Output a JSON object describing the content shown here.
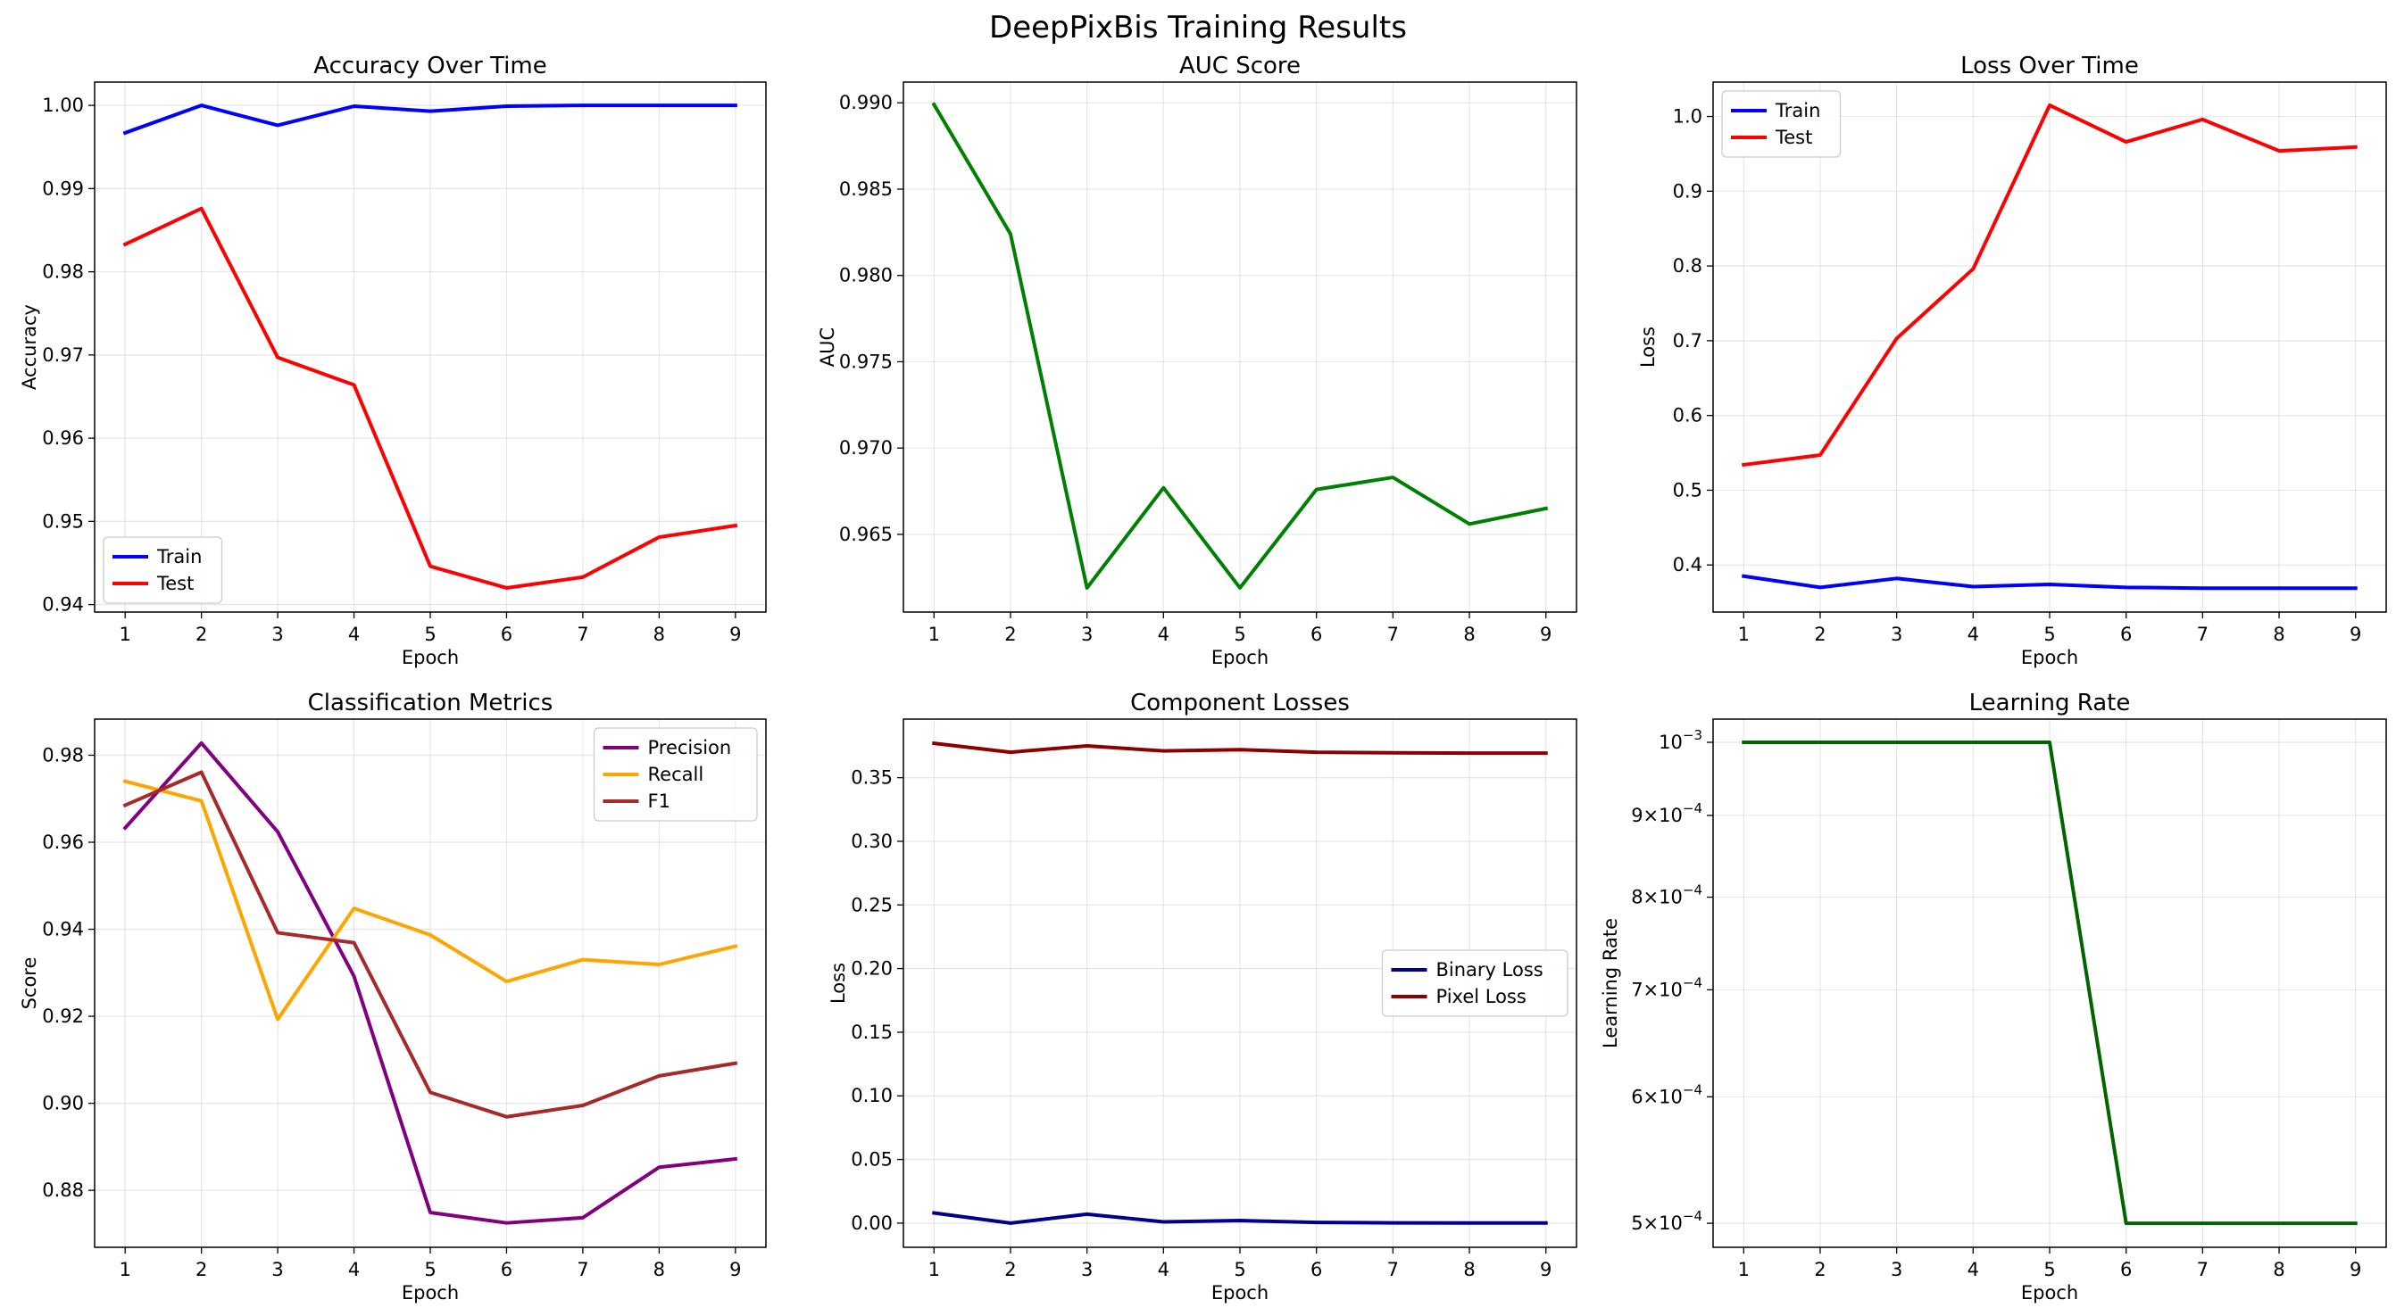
{
  "figure": {
    "title": "DeepPixBis Training Results"
  },
  "chart_data": [
    {
      "id": "accuracy",
      "type": "line",
      "title": "Accuracy Over Time",
      "xlabel": "Epoch",
      "ylabel": "Accuracy",
      "x": [
        1,
        2,
        3,
        4,
        5,
        6,
        7,
        8,
        9
      ],
      "xlim": [
        0.6,
        9.4
      ],
      "ylim": [
        0.9391,
        1.0028
      ],
      "yscale": "linear",
      "yticks": [
        0.94,
        0.95,
        0.96,
        0.97,
        0.98,
        0.99,
        1.0
      ],
      "ytick_labels": [
        "0.94",
        "0.95",
        "0.96",
        "0.97",
        "0.98",
        "0.99",
        "1.00"
      ],
      "grid": true,
      "legend": "lower-left",
      "series": [
        {
          "name": "Train",
          "color": "#0000ff",
          "values": [
            0.9967,
            1.0,
            0.9976,
            0.9999,
            0.9993,
            0.9999,
            1.0,
            1.0,
            1.0
          ]
        },
        {
          "name": "Test",
          "color": "#ff0000",
          "values": [
            0.9833,
            0.9876,
            0.9697,
            0.9664,
            0.9446,
            0.942,
            0.9433,
            0.9481,
            0.9495
          ]
        }
      ]
    },
    {
      "id": "auc",
      "type": "line",
      "title": "AUC Score",
      "xlabel": "Epoch",
      "ylabel": "AUC",
      "x": [
        1,
        2,
        3,
        4,
        5,
        6,
        7,
        8,
        9
      ],
      "xlim": [
        0.6,
        9.4
      ],
      "ylim": [
        0.9605,
        0.9912
      ],
      "yscale": "linear",
      "yticks": [
        0.965,
        0.97,
        0.975,
        0.98,
        0.985,
        0.99
      ],
      "ytick_labels": [
        "0.965",
        "0.970",
        "0.975",
        "0.980",
        "0.985",
        "0.990"
      ],
      "grid": true,
      "legend": "none",
      "series": [
        {
          "name": "",
          "color": "#008000",
          "values": [
            0.9899,
            0.9824,
            0.9619,
            0.9677,
            0.9619,
            0.9676,
            0.9683,
            0.9656,
            0.9665
          ]
        }
      ]
    },
    {
      "id": "loss",
      "type": "line",
      "title": "Loss Over Time",
      "xlabel": "Epoch",
      "ylabel": "Loss",
      "x": [
        1,
        2,
        3,
        4,
        5,
        6,
        7,
        8,
        9
      ],
      "xlim": [
        0.6,
        9.4
      ],
      "ylim": [
        0.337,
        1.046
      ],
      "yscale": "linear",
      "yticks": [
        0.4,
        0.5,
        0.6,
        0.7,
        0.8,
        0.9,
        1.0
      ],
      "ytick_labels": [
        "0.4",
        "0.5",
        "0.6",
        "0.7",
        "0.8",
        "0.9",
        "1.0"
      ],
      "grid": true,
      "legend": "upper-left",
      "series": [
        {
          "name": "Train",
          "color": "#0000ff",
          "values": [
            0.385,
            0.37,
            0.382,
            0.371,
            0.374,
            0.37,
            0.369,
            0.369,
            0.369
          ]
        },
        {
          "name": "Test",
          "color": "#ff0000",
          "values": [
            0.534,
            0.547,
            0.703,
            0.796,
            1.015,
            0.966,
            0.996,
            0.954,
            0.959
          ]
        }
      ]
    },
    {
      "id": "classification",
      "type": "line",
      "title": "Classification Metrics",
      "xlabel": "Epoch",
      "ylabel": "Score",
      "x": [
        1,
        2,
        3,
        4,
        5,
        6,
        7,
        8,
        9
      ],
      "xlim": [
        0.6,
        9.4
      ],
      "ylim": [
        0.8669,
        0.9883
      ],
      "yscale": "linear",
      "yticks": [
        0.88,
        0.9,
        0.92,
        0.94,
        0.96,
        0.98
      ],
      "ytick_labels": [
        "0.88",
        "0.90",
        "0.92",
        "0.94",
        "0.96",
        "0.98"
      ],
      "grid": true,
      "legend": "upper-right",
      "series": [
        {
          "name": "Precision",
          "color": "#800080",
          "values": [
            0.9633,
            0.9828,
            0.9624,
            0.9292,
            0.8749,
            0.8725,
            0.8737,
            0.8853,
            0.8872
          ]
        },
        {
          "name": "Recall",
          "color": "#ffa500",
          "values": [
            0.974,
            0.9695,
            0.9193,
            0.9448,
            0.9387,
            0.928,
            0.933,
            0.9319,
            0.9361
          ]
        },
        {
          "name": "F1",
          "color": "#a52a2a",
          "values": [
            0.9685,
            0.9761,
            0.9392,
            0.9369,
            0.9025,
            0.8969,
            0.8995,
            0.9063,
            0.9092
          ]
        }
      ]
    },
    {
      "id": "components",
      "type": "line",
      "title": "Component Losses",
      "xlabel": "Epoch",
      "ylabel": "Loss",
      "x": [
        1,
        2,
        3,
        4,
        5,
        6,
        7,
        8,
        9
      ],
      "xlim": [
        0.6,
        9.4
      ],
      "ylim": [
        -0.019,
        0.396
      ],
      "yscale": "linear",
      "yticks": [
        0.0,
        0.05,
        0.1,
        0.15,
        0.2,
        0.25,
        0.3,
        0.35
      ],
      "ytick_labels": [
        "0.00",
        "0.05",
        "0.10",
        "0.15",
        "0.20",
        "0.25",
        "0.30",
        "0.35"
      ],
      "grid": true,
      "legend": "center-right",
      "series": [
        {
          "name": "Binary Loss",
          "color": "#00008b",
          "values": [
            0.008,
            0.0,
            0.007,
            0.001,
            0.002,
            0.0005,
            0.0002,
            0.0001,
            0.0001
          ]
        },
        {
          "name": "Pixel Loss",
          "color": "#8b0000",
          "values": [
            0.377,
            0.37,
            0.375,
            0.371,
            0.372,
            0.37,
            0.3695,
            0.3693,
            0.3693
          ]
        }
      ]
    },
    {
      "id": "lr",
      "type": "line",
      "title": "Learning Rate",
      "xlabel": "Epoch",
      "ylabel": "Learning Rate",
      "x": [
        1,
        2,
        3,
        4,
        5,
        6,
        7,
        8,
        9
      ],
      "xlim": [
        0.6,
        9.4
      ],
      "ylim": [
        0.000483,
        0.001034
      ],
      "yscale": "log",
      "yticks": [
        0.0005,
        0.0006,
        0.0007,
        0.0008,
        0.0009,
        0.001
      ],
      "ytick_labels": [
        {
          "mantissa": "5",
          "base": "10",
          "exp": "−4"
        },
        {
          "mantissa": "6",
          "base": "10",
          "exp": "−4"
        },
        {
          "mantissa": "7",
          "base": "10",
          "exp": "−4"
        },
        {
          "mantissa": "8",
          "base": "10",
          "exp": "−4"
        },
        {
          "mantissa": "9",
          "base": "10",
          "exp": "−4"
        },
        {
          "mantissa": "",
          "base": "10",
          "exp": "−3"
        }
      ],
      "grid": true,
      "legend": "none",
      "series": [
        {
          "name": "",
          "color": "#006400",
          "values": [
            0.001,
            0.001,
            0.001,
            0.001,
            0.001,
            0.0005,
            0.0005,
            0.0005,
            0.0005
          ]
        }
      ]
    }
  ]
}
